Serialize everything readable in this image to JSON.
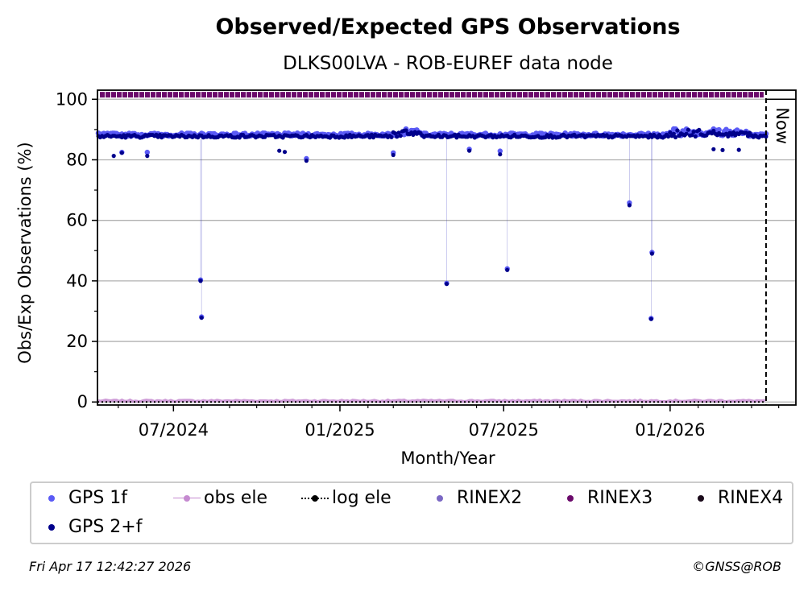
{
  "chart_data": {
    "type": "scatter",
    "title": "Observed/Expected GPS Observations",
    "subtitle": "DLKS00LVA - ROB-EUREF data node",
    "xlabel": "Month/Year",
    "ylabel": "Obs/Exp Observations (%)",
    "x_range": [
      "2024-04-08",
      "2026-05-20"
    ],
    "ylim": [
      -1,
      103
    ],
    "x_ticks": [
      {
        "date": "2024-07-01",
        "label": "07/2024"
      },
      {
        "date": "2025-01-01",
        "label": "01/2025"
      },
      {
        "date": "2025-07-01",
        "label": "07/2025"
      },
      {
        "date": "2026-01-01",
        "label": "01/2026"
      }
    ],
    "y_ticks": [
      0,
      20,
      40,
      60,
      80,
      100
    ],
    "grid": "horizontal",
    "now_marker": {
      "date": "2026-04-17",
      "label": "Now"
    },
    "series": [
      {
        "name": "GPS 1f",
        "color": "#5a5af5",
        "baseline": 88.3,
        "start": "2024-04-08",
        "end": "2026-04-17",
        "points": [
          {
            "x": "2024-07-31",
            "y": 40.3
          },
          {
            "x": "2024-08-01",
            "y": 28.1
          },
          {
            "x": "2025-04-29",
            "y": 39.2
          },
          {
            "x": "2025-07-05",
            "y": 44.0
          },
          {
            "x": "2025-11-17",
            "y": 65.8
          },
          {
            "x": "2025-12-12",
            "y": 49.4
          },
          {
            "x": "2025-12-11",
            "y": 27.6
          },
          {
            "x": "2024-05-05",
            "y": 82.5
          },
          {
            "x": "2024-06-02",
            "y": 82.5
          },
          {
            "x": "2024-11-25",
            "y": 80.4
          },
          {
            "x": "2025-06-27",
            "y": 82.9
          },
          {
            "x": "2025-05-24",
            "y": 83.5
          },
          {
            "x": "2025-03-01",
            "y": 82.3
          }
        ]
      },
      {
        "name": "GPS 2+f",
        "color": "#00008b",
        "baseline": 87.8,
        "start": "2024-04-08",
        "end": "2026-04-17",
        "points": [
          {
            "x": "2024-07-31",
            "y": 40.0
          },
          {
            "x": "2024-08-01",
            "y": 27.8
          },
          {
            "x": "2025-04-29",
            "y": 39.0
          },
          {
            "x": "2025-07-05",
            "y": 43.6
          },
          {
            "x": "2025-11-17",
            "y": 65.0
          },
          {
            "x": "2025-12-12",
            "y": 49.0
          },
          {
            "x": "2025-12-11",
            "y": 27.4
          },
          {
            "x": "2024-04-26",
            "y": 81.3
          },
          {
            "x": "2024-05-05",
            "y": 82.3
          },
          {
            "x": "2024-06-02",
            "y": 81.3
          },
          {
            "x": "2024-11-25",
            "y": 79.7
          },
          {
            "x": "2025-03-01",
            "y": 81.6
          },
          {
            "x": "2025-06-27",
            "y": 81.8
          },
          {
            "x": "2025-05-24",
            "y": 83.0
          },
          {
            "x": "2024-10-26",
            "y": 83.0
          },
          {
            "x": "2024-11-01",
            "y": 82.6
          },
          {
            "x": "2026-02-18",
            "y": 83.5
          },
          {
            "x": "2026-02-28",
            "y": 83.2
          },
          {
            "x": "2026-03-18",
            "y": 83.3
          }
        ]
      },
      {
        "name": "obs ele",
        "color": "#c58ad0",
        "baseline": 0.4
      },
      {
        "name": "log ele",
        "color": "#000000",
        "baseline": 0.0
      },
      {
        "name": "RINEX2",
        "color": "#7b68c4"
      },
      {
        "name": "RINEX3",
        "color": "#6b0a6b",
        "baseline": 101.5
      },
      {
        "name": "RINEX4",
        "color": "#1a0a1a"
      }
    ]
  },
  "legend": [
    {
      "label": "GPS 1f",
      "color": "#5a5af5",
      "style": "dot"
    },
    {
      "label": "obs ele",
      "color": "#c58ad0",
      "style": "line-dot"
    },
    {
      "label": "log ele",
      "color": "#000000",
      "style": "dotted-line-dot"
    },
    {
      "label": "RINEX2",
      "color": "#7b68c4",
      "style": "dot"
    },
    {
      "label": "RINEX3",
      "color": "#6b0a6b",
      "style": "dot"
    },
    {
      "label": "RINEX4",
      "color": "#1a0a1a",
      "style": "dot"
    },
    {
      "label": "GPS 2+f",
      "color": "#00008b",
      "style": "dot"
    }
  ],
  "footer": {
    "timestamp": "Fri Apr 17 12:42:27 2026",
    "credit": "©GNSS@ROB"
  }
}
